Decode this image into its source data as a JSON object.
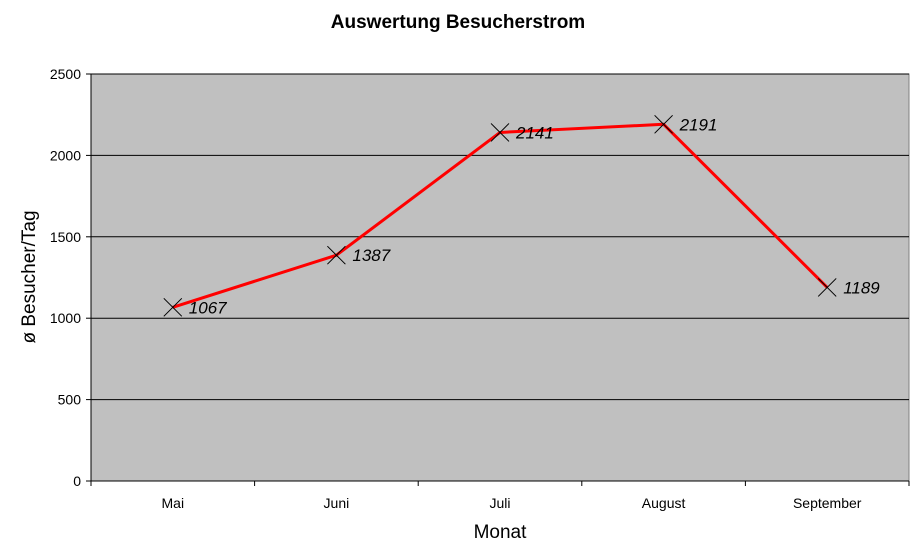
{
  "chart_data": {
    "type": "line",
    "title": "Auswertung Besucherstrom",
    "xlabel": "Monat",
    "ylabel": "ø Besucher/Tag",
    "categories": [
      "Mai",
      "Juni",
      "Juli",
      "August",
      "September"
    ],
    "series": [
      {
        "values": [
          1067,
          1387,
          2141,
          2191,
          1189
        ],
        "data_labels": [
          "1067",
          "1387",
          "2141",
          "2191",
          "1189"
        ],
        "color": "#ff0000",
        "marker": "x"
      }
    ],
    "ylim": [
      0,
      2500
    ],
    "yticks": [
      0,
      500,
      1000,
      1500,
      2000,
      2500
    ],
    "ytick_labels": [
      "0",
      "500",
      "1000",
      "1500",
      "2000",
      "2500"
    ],
    "grid": true,
    "legend": "none",
    "plot_background": "#c0c0c0",
    "gridline_color": "#000000"
  }
}
